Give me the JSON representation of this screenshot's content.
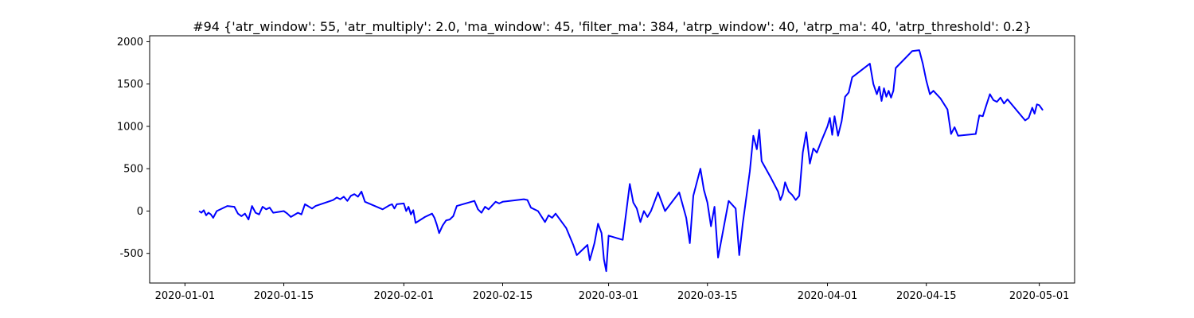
{
  "chart_data": {
    "type": "line",
    "title": "#94 {'atr_window': 55, 'atr_multiply': 2.0, 'ma_window': 45, 'filter_ma': 384, 'atrp_window': 40, 'atrp_ma': 40, 'atrp_threshold': 0.2}",
    "xlabel": "",
    "ylabel": "",
    "x_ticks": [
      "2020-01-01",
      "2020-01-15",
      "2020-02-01",
      "2020-02-15",
      "2020-03-01",
      "2020-03-15",
      "2020-04-01",
      "2020-04-15",
      "2020-05-01"
    ],
    "y_ticks": [
      -500,
      0,
      500,
      1000,
      1500,
      2000
    ],
    "xlim": [
      "2019-12-27",
      "2020-05-06"
    ],
    "ylim": [
      -850,
      2070
    ],
    "grid": false,
    "series": [
      {
        "color": "#0000ff",
        "points": [
          [
            "2020-01-03",
            0
          ],
          [
            "2020-01-03",
            -20
          ],
          [
            "2020-01-03",
            10
          ],
          [
            "2020-01-04",
            -50
          ],
          [
            "2020-01-04",
            -20
          ],
          [
            "2020-01-04",
            -40
          ],
          [
            "2020-01-05",
            -80
          ],
          [
            "2020-01-05",
            0
          ],
          [
            "2020-01-07",
            60
          ],
          [
            "2020-01-08",
            50
          ],
          [
            "2020-01-08",
            -30
          ],
          [
            "2020-01-09",
            -60
          ],
          [
            "2020-01-09",
            -30
          ],
          [
            "2020-01-10",
            -100
          ],
          [
            "2020-01-10",
            60
          ],
          [
            "2020-01-11",
            -20
          ],
          [
            "2020-01-11",
            -40
          ],
          [
            "2020-01-12",
            50
          ],
          [
            "2020-01-12",
            20
          ],
          [
            "2020-01-13",
            40
          ],
          [
            "2020-01-13",
            -20
          ],
          [
            "2020-01-15",
            0
          ],
          [
            "2020-01-15",
            -30
          ],
          [
            "2020-01-16",
            -70
          ],
          [
            "2020-01-17",
            -20
          ],
          [
            "2020-01-17",
            -40
          ],
          [
            "2020-01-18",
            80
          ],
          [
            "2020-01-19",
            30
          ],
          [
            "2020-01-19",
            60
          ],
          [
            "2020-01-22",
            130
          ],
          [
            "2020-01-22",
            160
          ],
          [
            "2020-01-23",
            140
          ],
          [
            "2020-01-23",
            170
          ],
          [
            "2020-01-24",
            120
          ],
          [
            "2020-01-24",
            180
          ],
          [
            "2020-01-25",
            200
          ],
          [
            "2020-01-25",
            170
          ],
          [
            "2020-01-26",
            230
          ],
          [
            "2020-01-26",
            110
          ],
          [
            "2020-01-29",
            20
          ],
          [
            "2020-01-30",
            70
          ],
          [
            "2020-01-30",
            80
          ],
          [
            "2020-01-30",
            30
          ],
          [
            "2020-01-31",
            80
          ],
          [
            "2020-02-01",
            90
          ],
          [
            "2020-02-01",
            0
          ],
          [
            "2020-02-01",
            50
          ],
          [
            "2020-02-02",
            -40
          ],
          [
            "2020-02-02",
            10
          ],
          [
            "2020-02-02",
            -140
          ],
          [
            "2020-02-04",
            -70
          ],
          [
            "2020-02-05",
            -30
          ],
          [
            "2020-02-05",
            -80
          ],
          [
            "2020-02-05",
            -160
          ],
          [
            "2020-02-06",
            -260
          ],
          [
            "2020-02-06",
            -170
          ],
          [
            "2020-02-07",
            -110
          ],
          [
            "2020-02-07",
            -100
          ],
          [
            "2020-02-08",
            -60
          ],
          [
            "2020-02-08",
            60
          ],
          [
            "2020-02-11",
            120
          ],
          [
            "2020-02-11",
            20
          ],
          [
            "2020-02-12",
            -20
          ],
          [
            "2020-02-12",
            50
          ],
          [
            "2020-02-13",
            20
          ],
          [
            "2020-02-14",
            110
          ],
          [
            "2020-02-14",
            90
          ],
          [
            "2020-02-15",
            110
          ],
          [
            "2020-02-18",
            140
          ],
          [
            "2020-02-18",
            130
          ],
          [
            "2020-02-19",
            40
          ],
          [
            "2020-02-20",
            0
          ],
          [
            "2020-02-21",
            -130
          ],
          [
            "2020-02-21",
            -50
          ],
          [
            "2020-02-22",
            -80
          ],
          [
            "2020-02-22",
            -30
          ],
          [
            "2020-02-24",
            -200
          ],
          [
            "2020-02-25",
            -400
          ],
          [
            "2020-02-25",
            -520
          ],
          [
            "2020-02-26",
            -480
          ],
          [
            "2020-02-27",
            -400
          ],
          [
            "2020-02-27",
            -580
          ],
          [
            "2020-02-27",
            -480
          ],
          [
            "2020-02-28",
            -380
          ],
          [
            "2020-02-28",
            -150
          ],
          [
            "2020-02-29",
            -260
          ],
          [
            "2020-02-29",
            -570
          ],
          [
            "2020-02-29",
            -710
          ],
          [
            "2020-03-01",
            -290
          ],
          [
            "2020-03-03",
            -340
          ],
          [
            "2020-03-04",
            320
          ],
          [
            "2020-03-04",
            100
          ],
          [
            "2020-03-05",
            30
          ],
          [
            "2020-03-05",
            -130
          ],
          [
            "2020-03-06",
            0
          ],
          [
            "2020-03-06",
            -70
          ],
          [
            "2020-03-07",
            0
          ],
          [
            "2020-03-08",
            220
          ],
          [
            "2020-03-09",
            0
          ],
          [
            "2020-03-11",
            220
          ],
          [
            "2020-03-12",
            -80
          ],
          [
            "2020-03-12",
            -380
          ],
          [
            "2020-03-13",
            180
          ],
          [
            "2020-03-14",
            500
          ],
          [
            "2020-03-14",
            250
          ],
          [
            "2020-03-15",
            100
          ],
          [
            "2020-03-15",
            -180
          ],
          [
            "2020-03-16",
            50
          ],
          [
            "2020-03-16",
            -550
          ],
          [
            "2020-03-18",
            120
          ],
          [
            "2020-03-19",
            30
          ],
          [
            "2020-03-19",
            -520
          ],
          [
            "2020-03-20",
            -150
          ],
          [
            "2020-03-21",
            470
          ],
          [
            "2020-03-21",
            890
          ],
          [
            "2020-03-22",
            730
          ],
          [
            "2020-03-22",
            960
          ],
          [
            "2020-03-22",
            590
          ],
          [
            "2020-03-24",
            390
          ],
          [
            "2020-03-25",
            230
          ],
          [
            "2020-03-25",
            130
          ],
          [
            "2020-03-25",
            200
          ],
          [
            "2020-03-26",
            340
          ],
          [
            "2020-03-26",
            230
          ],
          [
            "2020-03-27",
            190
          ],
          [
            "2020-03-27",
            130
          ],
          [
            "2020-03-28",
            180
          ],
          [
            "2020-03-28",
            690
          ],
          [
            "2020-03-29",
            930
          ],
          [
            "2020-03-29",
            560
          ],
          [
            "2020-03-30",
            740
          ],
          [
            "2020-03-30",
            690
          ],
          [
            "2020-03-31",
            800
          ],
          [
            "2020-04-01",
            1000
          ],
          [
            "2020-04-01",
            1100
          ],
          [
            "2020-04-01",
            900
          ],
          [
            "2020-04-02",
            1120
          ],
          [
            "2020-04-02",
            890
          ],
          [
            "2020-04-03",
            1060
          ],
          [
            "2020-04-03",
            1350
          ],
          [
            "2020-04-04",
            1400
          ],
          [
            "2020-04-04",
            1580
          ],
          [
            "2020-04-07",
            1740
          ],
          [
            "2020-04-07",
            1500
          ],
          [
            "2020-04-08",
            1380
          ],
          [
            "2020-04-08",
            1470
          ],
          [
            "2020-04-08",
            1300
          ],
          [
            "2020-04-09",
            1450
          ],
          [
            "2020-04-09",
            1350
          ],
          [
            "2020-04-09",
            1420
          ],
          [
            "2020-04-10",
            1340
          ],
          [
            "2020-04-10",
            1420
          ],
          [
            "2020-04-10",
            1690
          ],
          [
            "2020-04-13",
            1890
          ],
          [
            "2020-04-14",
            1900
          ],
          [
            "2020-04-14",
            1740
          ],
          [
            "2020-04-15",
            1540
          ],
          [
            "2020-04-15",
            1380
          ],
          [
            "2020-04-16",
            1420
          ],
          [
            "2020-04-17",
            1330
          ],
          [
            "2020-04-18",
            1200
          ],
          [
            "2020-04-18",
            910
          ],
          [
            "2020-04-19",
            990
          ],
          [
            "2020-04-19",
            890
          ],
          [
            "2020-04-22",
            910
          ],
          [
            "2020-04-22",
            1130
          ],
          [
            "2020-04-23",
            1120
          ],
          [
            "2020-04-23",
            1250
          ],
          [
            "2020-04-24",
            1380
          ],
          [
            "2020-04-24",
            1310
          ],
          [
            "2020-04-25",
            1290
          ],
          [
            "2020-04-25",
            1340
          ],
          [
            "2020-04-26",
            1270
          ],
          [
            "2020-04-26",
            1320
          ],
          [
            "2020-04-28",
            1170
          ],
          [
            "2020-04-29",
            1070
          ],
          [
            "2020-04-29",
            1100
          ],
          [
            "2020-04-30",
            1220
          ],
          [
            "2020-04-30",
            1150
          ],
          [
            "2020-04-30",
            1260
          ],
          [
            "2020-05-01",
            1250
          ],
          [
            "2020-05-01",
            1190
          ]
        ]
      }
    ]
  }
}
